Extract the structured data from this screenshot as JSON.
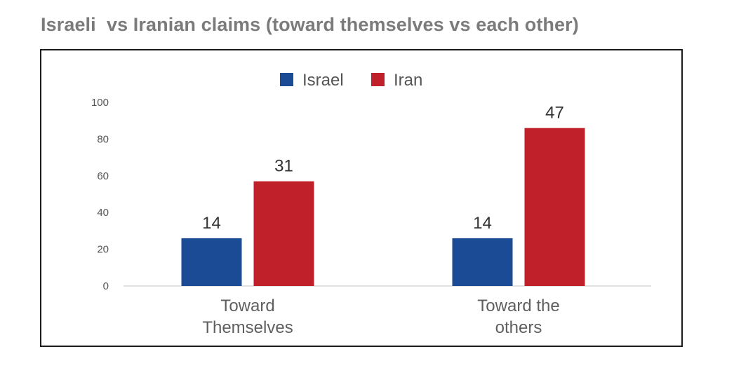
{
  "title": "Israeli  vs Iranian claims (toward themselves vs each other)",
  "chart_data": {
    "type": "bar",
    "title": "Israeli  vs Iranian claims (toward themselves vs each other)",
    "xlabel": "",
    "ylabel": "",
    "ylim": [
      0,
      100
    ],
    "yticks": [
      0,
      20,
      40,
      60,
      80,
      100
    ],
    "categories": [
      [
        "Toward",
        "Themselves"
      ],
      [
        "Toward the",
        "others"
      ]
    ],
    "series": [
      {
        "name": "Israel",
        "color": "#1b4b94",
        "values": [
          26,
          26
        ],
        "labels": [
          "14",
          "14"
        ]
      },
      {
        "name": "Iran",
        "color": "#c0202a",
        "values": [
          57,
          86
        ],
        "labels": [
          "31",
          "47"
        ]
      }
    ],
    "grid": false,
    "legend": "top-center"
  }
}
